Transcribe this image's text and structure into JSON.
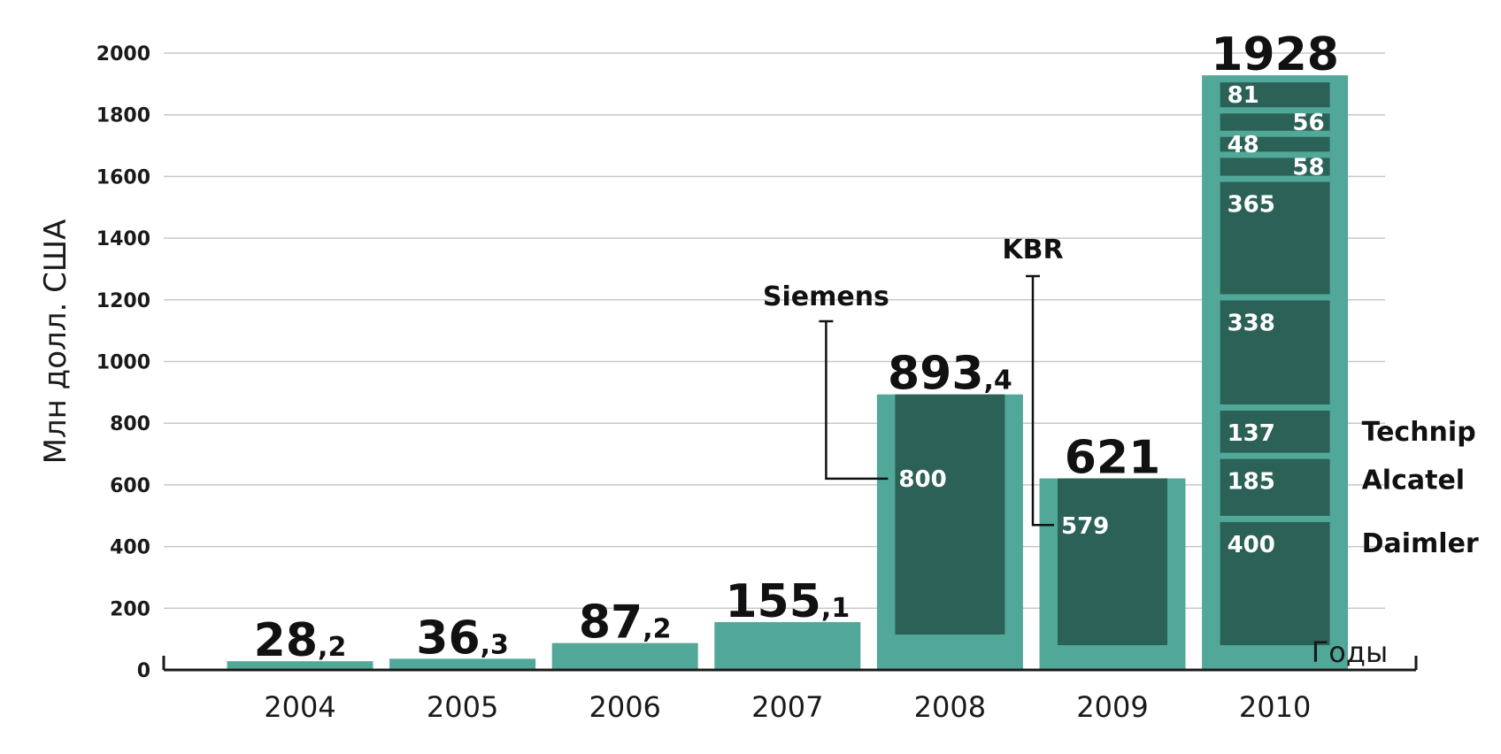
{
  "chart_data": {
    "type": "bar",
    "ylabel": "Млн долл. США",
    "xlabel": "Годы",
    "ylim": [
      0,
      2000
    ],
    "yticks": [
      0,
      200,
      400,
      600,
      800,
      1000,
      1200,
      1400,
      1600,
      1800,
      2000
    ],
    "grid": true,
    "categories": [
      "2004",
      "2005",
      "2006",
      "2007",
      "2008",
      "2009",
      "2010"
    ],
    "values": [
      28.2,
      36.3,
      87.2,
      155.1,
      893.4,
      621,
      1928
    ],
    "value_labels": [
      {
        "int": "28",
        "frac": ",2"
      },
      {
        "int": "36",
        "frac": ",3"
      },
      {
        "int": "87",
        "frac": ",2"
      },
      {
        "int": "155",
        "frac": ",1"
      },
      {
        "int": "893",
        "frac": ",4"
      },
      {
        "int": "621",
        "frac": ""
      },
      {
        "int": "1928",
        "frac": ""
      }
    ],
    "breakdowns": {
      "2008": [
        {
          "value": 800,
          "label": "800",
          "company": "Siemens"
        }
      ],
      "2009": [
        {
          "value": 579,
          "label": "579",
          "company": "KBR"
        }
      ],
      "2010": [
        {
          "value": 400,
          "label": "400",
          "company": "Daimler"
        },
        {
          "value": 185,
          "label": "185",
          "company": "Alcatel"
        },
        {
          "value": 137,
          "label": "137",
          "company": "Technip"
        },
        {
          "value": 338,
          "label": "338",
          "company": ""
        },
        {
          "value": 365,
          "label": "365",
          "company": ""
        },
        {
          "value": 58,
          "label": "58",
          "company": ""
        },
        {
          "value": 48,
          "label": "48",
          "company": ""
        },
        {
          "value": 56,
          "label": "56",
          "company": ""
        },
        {
          "value": 81,
          "label": "81",
          "company": ""
        }
      ]
    },
    "colors": {
      "bar": "#52a898",
      "segment": "#2b6156",
      "grid": "#c8c8c8",
      "axis": "#1a1a1a"
    }
  }
}
